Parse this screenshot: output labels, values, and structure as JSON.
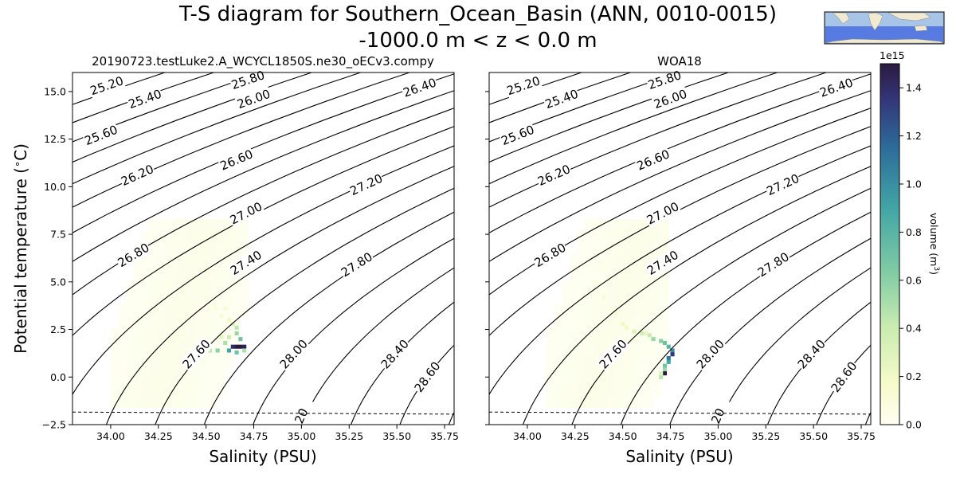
{
  "figure": {
    "title_line1": "T-S diagram for Southern_Ocean_Basin (ANN, 0010-0015)",
    "title_line2": "-1000.0 m < z < 0.0 m"
  },
  "chart_data": [
    {
      "type": "heatmap",
      "panel": "left",
      "title": "20190723.testLuke2.A_WCYCL1850S.ne30_oECv3.compy",
      "xlabel": "Salinity (PSU)",
      "ylabel": "Potential temperature ($^\\circ$C)",
      "xlim": [
        33.8,
        35.8
      ],
      "ylim": [
        -2.5,
        16.0
      ],
      "xticks": [
        "34.00",
        "34.25",
        "34.50",
        "34.75",
        "35.00",
        "35.25",
        "35.50",
        "35.75"
      ],
      "xtick_values": [
        34.0,
        34.25,
        34.5,
        34.75,
        35.0,
        35.25,
        35.5,
        35.75
      ],
      "yticks": [
        "−2.5",
        "0.0",
        "2.5",
        "5.0",
        "7.5",
        "10.0",
        "12.5",
        "15.0"
      ],
      "ytick_values": [
        -2.5,
        0.0,
        2.5,
        5.0,
        7.5,
        10.0,
        12.5,
        15.0
      ],
      "freezing_line": [
        [
          33.8,
          -1.84
        ],
        [
          35.8,
          -1.95
        ]
      ],
      "contour_labels": [
        {
          "text": "25.20",
          "s": 33.98,
          "t": 15.3
        },
        {
          "text": "25.40",
          "s": 34.18,
          "t": 14.6
        },
        {
          "text": "25.80",
          "s": 34.72,
          "t": 15.6
        },
        {
          "text": "26.00",
          "s": 34.75,
          "t": 14.6
        },
        {
          "text": "26.40",
          "s": 35.62,
          "t": 15.2
        },
        {
          "text": "25.60",
          "s": 33.95,
          "t": 12.7
        },
        {
          "text": "26.60",
          "s": 34.66,
          "t": 11.4
        },
        {
          "text": "26.20",
          "s": 34.14,
          "t": 10.6
        },
        {
          "text": "27.20",
          "s": 35.34,
          "t": 10.1
        },
        {
          "text": "27.00",
          "s": 34.71,
          "t": 8.6
        },
        {
          "text": "26.80",
          "s": 34.12,
          "t": 6.4
        },
        {
          "text": "27.40",
          "s": 34.71,
          "t": 6.0
        },
        {
          "text": "27.80",
          "s": 35.29,
          "t": 5.9
        },
        {
          "text": "27.60",
          "s": 34.45,
          "t": 1.2
        },
        {
          "text": "28.00",
          "s": 34.96,
          "t": 1.2
        },
        {
          "text": "28.40",
          "s": 35.49,
          "t": 1.2
        },
        {
          "text": "28.60",
          "s": 35.66,
          "t": 0.0
        },
        {
          "text": "20",
          "s": 35.0,
          "t": -2.05
        }
      ],
      "cells": [
        {
          "s": 34.4,
          "t": 6.0,
          "v": 0.04
        },
        {
          "s": 34.45,
          "t": 5.0,
          "v": 0.05
        },
        {
          "s": 34.5,
          "t": 4.2,
          "v": 0.07
        },
        {
          "s": 34.55,
          "t": 3.6,
          "v": 0.09
        },
        {
          "s": 34.58,
          "t": 3.2,
          "v": 0.12
        },
        {
          "s": 34.6,
          "t": 3.6,
          "v": 0.12
        },
        {
          "s": 34.62,
          "t": 3.0,
          "v": 0.2
        },
        {
          "s": 34.64,
          "t": 2.8,
          "v": 0.3
        },
        {
          "s": 34.66,
          "t": 2.6,
          "v": 0.45
        },
        {
          "s": 34.66,
          "t": 2.3,
          "v": 0.55
        },
        {
          "s": 34.68,
          "t": 2.0,
          "v": 0.7
        },
        {
          "s": 34.62,
          "t": 2.1,
          "v": 0.4
        },
        {
          "s": 34.6,
          "t": 1.8,
          "v": 0.5
        },
        {
          "s": 34.64,
          "t": 1.6,
          "v": 1.4
        },
        {
          "s": 34.66,
          "t": 1.6,
          "v": 1.5
        },
        {
          "s": 34.68,
          "t": 1.6,
          "v": 1.5
        },
        {
          "s": 34.7,
          "t": 1.6,
          "v": 1.45
        },
        {
          "s": 34.56,
          "t": 1.4,
          "v": 0.6
        },
        {
          "s": 34.62,
          "t": 1.4,
          "v": 0.9
        },
        {
          "s": 34.66,
          "t": 1.3,
          "v": 0.7
        },
        {
          "s": 34.7,
          "t": 1.4,
          "v": 0.5
        },
        {
          "s": 34.52,
          "t": 1.4,
          "v": 0.45
        },
        {
          "s": 34.58,
          "t": 2.1,
          "v": 0.25
        },
        {
          "s": 34.48,
          "t": 1.5,
          "v": 0.2
        },
        {
          "s": 34.4,
          "t": 1.1,
          "v": 0.1
        },
        {
          "s": 34.3,
          "t": 0.6,
          "v": 0.05
        }
      ]
    },
    {
      "type": "heatmap",
      "panel": "right",
      "title": "WOA18",
      "xlabel": "Salinity (PSU)",
      "xlim": [
        33.8,
        35.8
      ],
      "ylim": [
        -2.5,
        16.0
      ],
      "xticks": [
        "34.00",
        "34.25",
        "34.50",
        "34.75",
        "35.00",
        "35.25",
        "35.50",
        "35.75"
      ],
      "xtick_values": [
        34.0,
        34.25,
        34.5,
        34.75,
        35.0,
        35.25,
        35.5,
        35.75
      ],
      "freezing_line": [
        [
          33.8,
          -1.84
        ],
        [
          35.8,
          -1.95
        ]
      ],
      "contour_labels": [
        {
          "text": "25.20",
          "s": 33.98,
          "t": 15.3
        },
        {
          "text": "25.40",
          "s": 34.18,
          "t": 14.6
        },
        {
          "text": "25.80",
          "s": 34.72,
          "t": 15.6
        },
        {
          "text": "26.00",
          "s": 34.75,
          "t": 14.6
        },
        {
          "text": "26.40",
          "s": 35.62,
          "t": 15.2
        },
        {
          "text": "25.60",
          "s": 33.95,
          "t": 12.7
        },
        {
          "text": "26.60",
          "s": 34.66,
          "t": 11.4
        },
        {
          "text": "26.20",
          "s": 34.14,
          "t": 10.6
        },
        {
          "text": "27.20",
          "s": 35.34,
          "t": 10.1
        },
        {
          "text": "27.00",
          "s": 34.71,
          "t": 8.6
        },
        {
          "text": "26.80",
          "s": 34.12,
          "t": 6.4
        },
        {
          "text": "27.40",
          "s": 34.71,
          "t": 6.0
        },
        {
          "text": "27.80",
          "s": 35.29,
          "t": 5.9
        },
        {
          "text": "27.60",
          "s": 34.45,
          "t": 1.2
        },
        {
          "text": "28.00",
          "s": 34.96,
          "t": 1.2
        },
        {
          "text": "28.40",
          "s": 35.49,
          "t": 1.2
        },
        {
          "text": "28.60",
          "s": 35.66,
          "t": 0.0
        },
        {
          "text": "20",
          "s": 35.0,
          "t": -2.05
        }
      ],
      "cells": [
        {
          "s": 34.44,
          "t": 7.0,
          "v": 0.06
        },
        {
          "s": 34.38,
          "t": 6.0,
          "v": 0.08
        },
        {
          "s": 34.36,
          "t": 5.0,
          "v": 0.1
        },
        {
          "s": 34.4,
          "t": 4.2,
          "v": 0.12
        },
        {
          "s": 34.46,
          "t": 3.4,
          "v": 0.15
        },
        {
          "s": 34.5,
          "t": 2.8,
          "v": 0.2
        },
        {
          "s": 34.56,
          "t": 2.4,
          "v": 0.3
        },
        {
          "s": 34.6,
          "t": 2.3,
          "v": 0.35
        },
        {
          "s": 34.64,
          "t": 2.2,
          "v": 0.4
        },
        {
          "s": 34.66,
          "t": 2.0,
          "v": 0.55
        },
        {
          "s": 34.7,
          "t": 1.9,
          "v": 0.6
        },
        {
          "s": 34.72,
          "t": 1.8,
          "v": 0.7
        },
        {
          "s": 34.74,
          "t": 1.6,
          "v": 0.8
        },
        {
          "s": 34.76,
          "t": 1.4,
          "v": 1.0
        },
        {
          "s": 34.76,
          "t": 1.2,
          "v": 1.35
        },
        {
          "s": 34.74,
          "t": 1.0,
          "v": 1.1
        },
        {
          "s": 34.74,
          "t": 0.8,
          "v": 0.9
        },
        {
          "s": 34.72,
          "t": 0.6,
          "v": 0.7
        },
        {
          "s": 34.72,
          "t": 0.4,
          "v": 0.55
        },
        {
          "s": 34.72,
          "t": 0.2,
          "v": 1.5
        },
        {
          "s": 34.7,
          "t": 0.0,
          "v": 0.45
        },
        {
          "s": 34.7,
          "t": 0.2,
          "v": 0.3
        },
        {
          "s": 34.62,
          "t": 2.3,
          "v": 0.25
        },
        {
          "s": 34.52,
          "t": 2.6,
          "v": 0.18
        }
      ]
    }
  ],
  "colorbar": {
    "label": "volume (m$^3$)",
    "multiplier": "1e15",
    "ticks": [
      "0.0",
      "0.2",
      "0.4",
      "0.6",
      "0.8",
      "1.0",
      "1.2",
      "1.4"
    ],
    "tick_values": [
      0.0,
      0.2,
      0.4,
      0.6,
      0.8,
      1.0,
      1.2,
      1.4
    ],
    "range": [
      0.0,
      1.5
    ]
  },
  "colors": {
    "map_ocean": "#a8c4e6",
    "map_region": "#4a6fe0",
    "map_land": "#f1ead2"
  }
}
